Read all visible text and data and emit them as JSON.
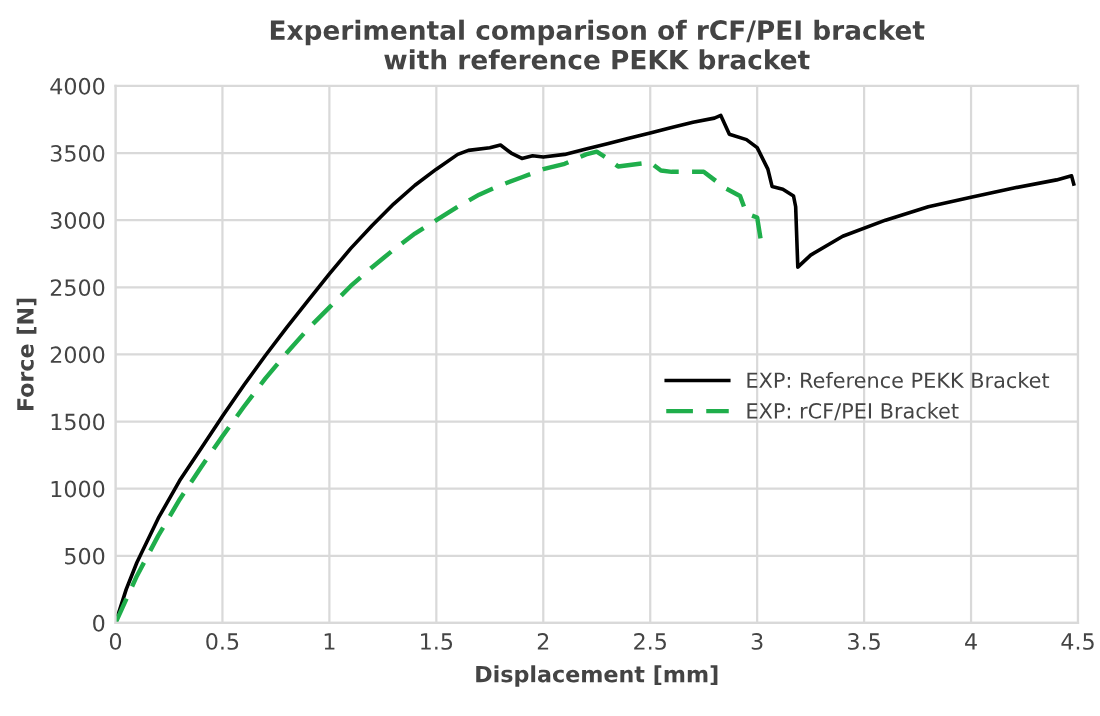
{
  "chart_data": {
    "type": "line",
    "title": "Experimental comparison of rCF/PEI bracket\nwith reference PEKK bracket",
    "xlabel": "Displacement [mm]",
    "ylabel": "Force [N]",
    "xlim": [
      0,
      4.5
    ],
    "ylim": [
      0,
      4000
    ],
    "xticks": [
      0,
      0.5,
      1,
      1.5,
      2,
      2.5,
      3,
      3.5,
      4,
      4.5
    ],
    "yticks": [
      0,
      500,
      1000,
      1500,
      2000,
      2500,
      3000,
      3500,
      4000
    ],
    "grid": true,
    "legend": "right",
    "marker": "none",
    "series": [
      {
        "name": "EXP: Reference PEKK Bracket",
        "color": "#000000",
        "line_style": "solid",
        "x": [
          0,
          0.05,
          0.1,
          0.2,
          0.3,
          0.4,
          0.5,
          0.6,
          0.7,
          0.8,
          0.9,
          1.0,
          1.1,
          1.2,
          1.3,
          1.4,
          1.5,
          1.6,
          1.65,
          1.75,
          1.8,
          1.85,
          1.9,
          1.95,
          2.0,
          2.1,
          2.2,
          2.3,
          2.4,
          2.5,
          2.6,
          2.7,
          2.8,
          2.83,
          2.87,
          2.95,
          3.0,
          3.05,
          3.07,
          3.12,
          3.17,
          3.18,
          3.19,
          3.25,
          3.4,
          3.6,
          3.8,
          4.0,
          4.2,
          4.4,
          4.47,
          4.48
        ],
        "values": [
          0,
          250,
          450,
          780,
          1060,
          1300,
          1540,
          1770,
          1990,
          2200,
          2400,
          2600,
          2790,
          2960,
          3120,
          3260,
          3380,
          3490,
          3520,
          3540,
          3560,
          3500,
          3460,
          3480,
          3470,
          3490,
          3530,
          3570,
          3610,
          3650,
          3690,
          3730,
          3760,
          3780,
          3640,
          3600,
          3540,
          3380,
          3250,
          3230,
          3180,
          3100,
          2650,
          2740,
          2880,
          3000,
          3100,
          3170,
          3240,
          3300,
          3330,
          3270
        ]
      },
      {
        "name": "EXP: rCF/PEI Bracket",
        "color": "#1fae4b",
        "line_style": "dashed",
        "x": [
          0,
          0.1,
          0.2,
          0.3,
          0.4,
          0.5,
          0.6,
          0.7,
          0.8,
          0.9,
          1.0,
          1.1,
          1.2,
          1.3,
          1.4,
          1.5,
          1.6,
          1.7,
          1.8,
          1.9,
          2.0,
          2.1,
          2.2,
          2.25,
          2.3,
          2.35,
          2.45,
          2.5,
          2.55,
          2.6,
          2.75,
          2.8,
          2.85,
          2.92,
          2.95,
          3.0,
          3.02
        ],
        "values": [
          0,
          350,
          650,
          920,
          1160,
          1390,
          1610,
          1820,
          2010,
          2190,
          2350,
          2510,
          2650,
          2780,
          2900,
          3000,
          3100,
          3190,
          3260,
          3320,
          3380,
          3420,
          3490,
          3510,
          3460,
          3400,
          3420,
          3430,
          3370,
          3360,
          3360,
          3300,
          3240,
          3180,
          3050,
          3020,
          2820
        ]
      }
    ]
  }
}
